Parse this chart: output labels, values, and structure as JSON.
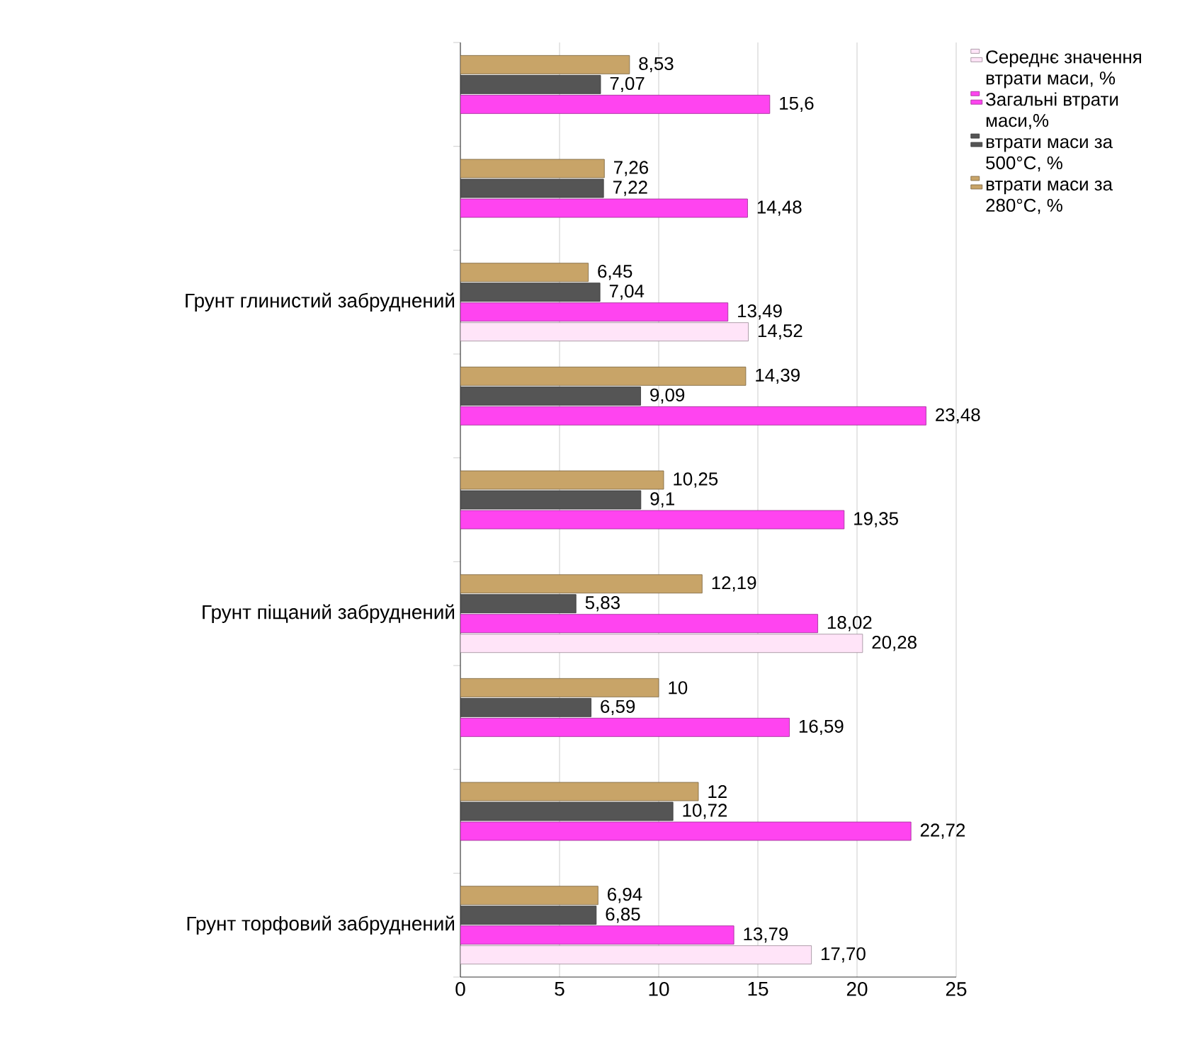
{
  "chart_data": {
    "type": "bar",
    "orientation": "horizontal",
    "categories": [
      null,
      null,
      "Грунт глинистий забруднений",
      null,
      null,
      "Грунт піщаний забруднений",
      null,
      null,
      "Грунт торфовий забруднений"
    ],
    "series": [
      {
        "name": "Середнє значення втрати маси, %",
        "color": "#ffe4f8",
        "values": [
          null,
          null,
          14.52,
          null,
          null,
          20.28,
          null,
          null,
          17.7
        ],
        "value_labels": [
          null,
          null,
          "14,52",
          null,
          null,
          "20,28",
          null,
          null,
          "17,70"
        ]
      },
      {
        "name": "Загальні втрати маси,%",
        "color": "#ff44f0",
        "values": [
          15.6,
          14.48,
          13.49,
          23.48,
          19.35,
          18.02,
          16.59,
          22.72,
          13.79
        ],
        "value_labels": [
          "15,6",
          "14,48",
          "13,49",
          "23,48",
          "19,35",
          "18,02",
          "16,59",
          "22,72",
          "13,79"
        ]
      },
      {
        "name": "втрати маси  за 500°C, %",
        "color": "#555555",
        "values": [
          7.07,
          7.22,
          7.04,
          9.09,
          9.1,
          5.83,
          6.59,
          10.72,
          6.85
        ],
        "value_labels": [
          "7,07",
          "7,22",
          "7,04",
          "9,09",
          "9,1",
          "5,83",
          "6,59",
          "10,72",
          "6,85"
        ]
      },
      {
        "name": "втрати маси  за 280°C, %",
        "color": "#c8a468",
        "values": [
          8.53,
          7.26,
          6.45,
          14.39,
          10.25,
          12.19,
          10,
          12,
          6.94
        ],
        "value_labels": [
          "8,53",
          "7,26",
          "6,45",
          "14,39",
          "10,25",
          "12,19",
          "10",
          "12",
          "6,94"
        ]
      }
    ],
    "xlim": [
      0,
      25
    ],
    "xticks": [
      0,
      5,
      10,
      15,
      20,
      25
    ],
    "grid": "x",
    "legend": "right"
  }
}
